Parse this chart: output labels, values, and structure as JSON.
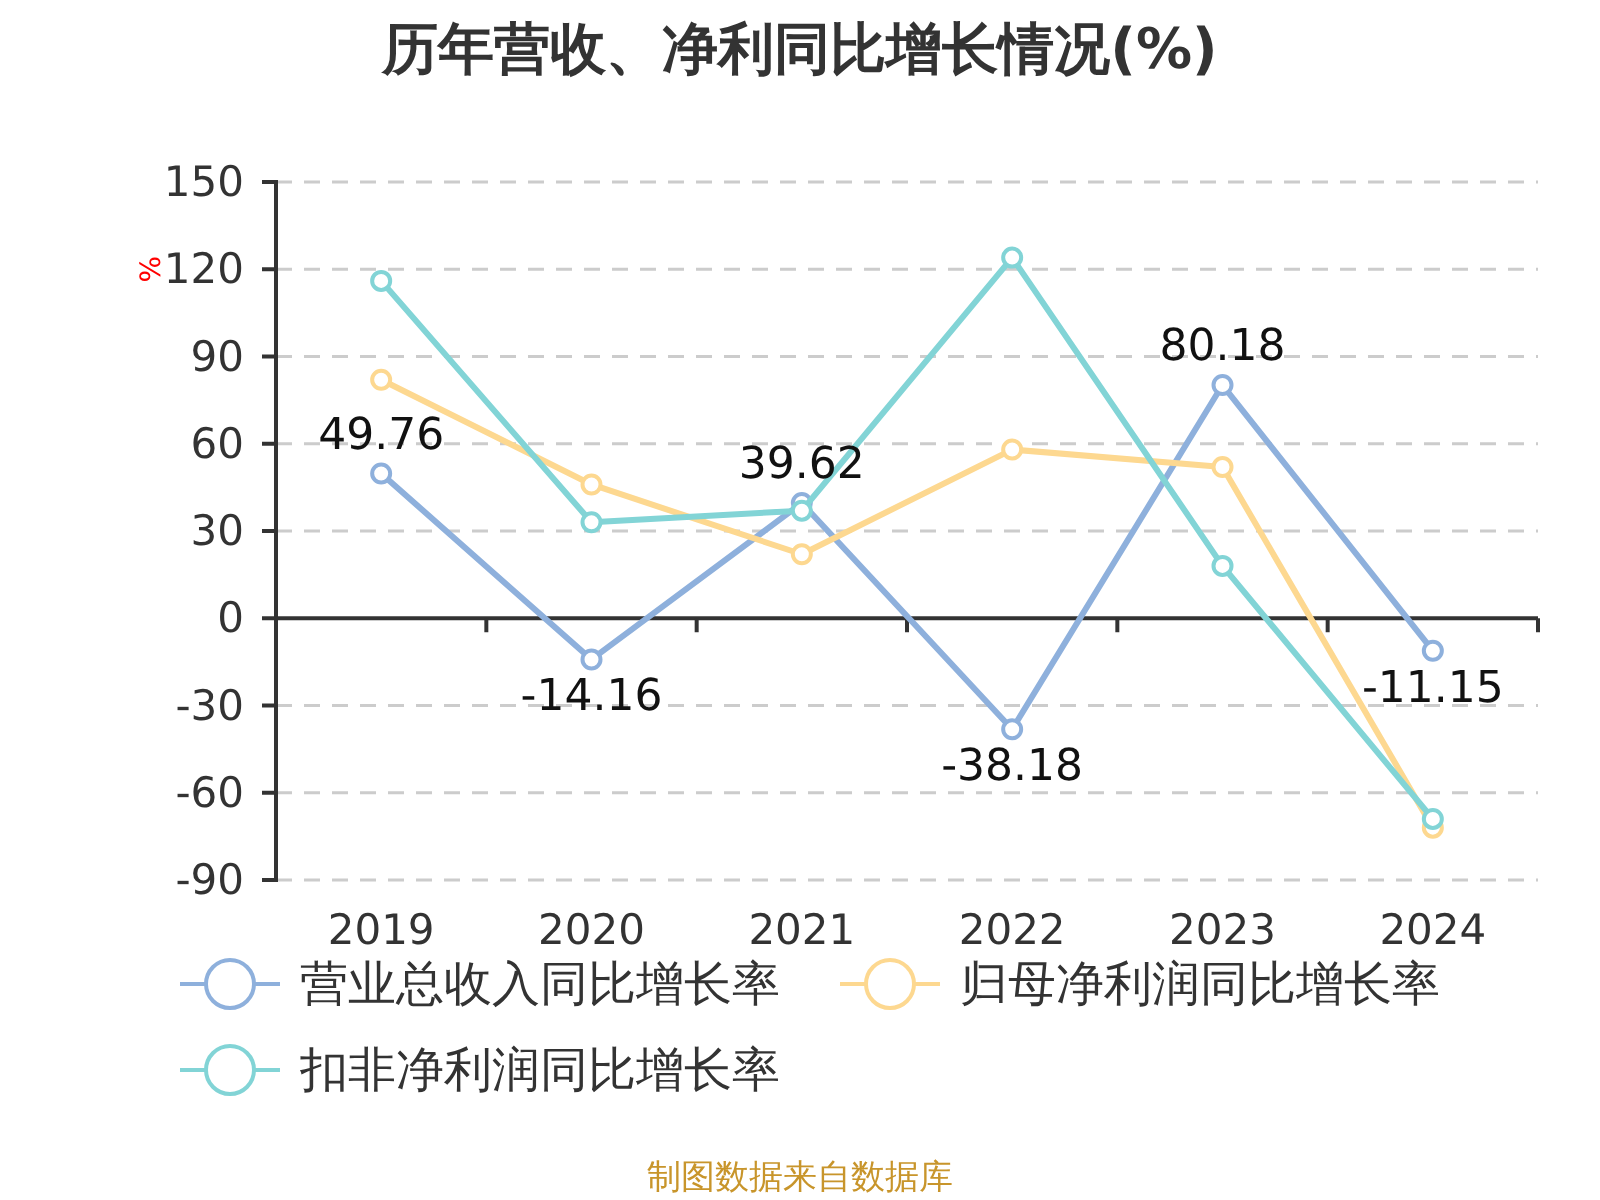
{
  "chart_data": {
    "type": "line",
    "title": "历年营收、净利同比增长情况(%)",
    "ylabel": "%",
    "categories": [
      "2019",
      "2020",
      "2021",
      "2022",
      "2023",
      "2024"
    ],
    "series": [
      {
        "name": "营业总收入同比增长率",
        "color": "#8eb0dc",
        "values": [
          49.76,
          -14.16,
          39.62,
          -38.18,
          80.18,
          -11.15
        ],
        "value_labels": [
          "49.76",
          "-14.16",
          "39.62",
          "-38.18",
          "80.18",
          "-11.15"
        ]
      },
      {
        "name": "归母净利润同比增长率",
        "color": "#fdd890",
        "values": [
          82,
          46,
          22,
          58,
          52,
          -72
        ]
      },
      {
        "name": "扣非净利润同比增长率",
        "color": "#82d4d6",
        "values": [
          116,
          33,
          37,
          124,
          18,
          -69
        ]
      }
    ],
    "ylim": [
      -90,
      150
    ],
    "yticks": [
      -90,
      -60,
      -30,
      0,
      30,
      60,
      90,
      120,
      150
    ],
    "grid": "y",
    "legend": "bottom",
    "marker": "circle",
    "line_style": "solid",
    "annotations": [
      "制图数据来自数据库"
    ]
  }
}
